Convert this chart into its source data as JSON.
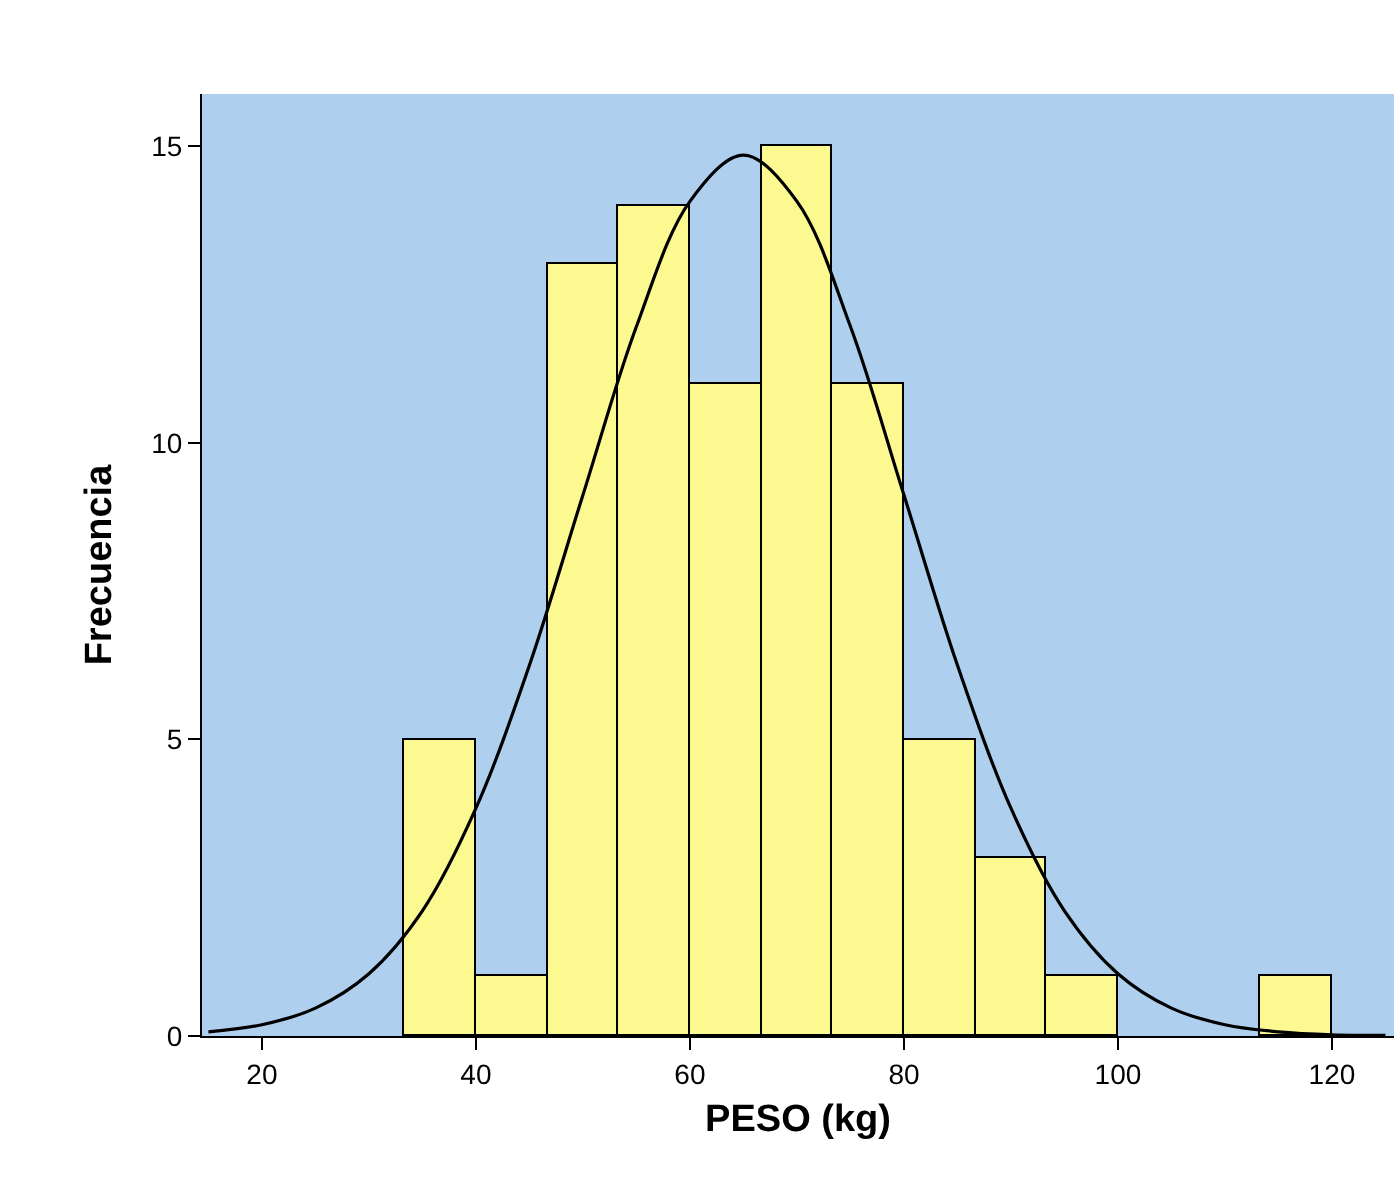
{
  "chart_data": {
    "type": "histogram",
    "xlabel": "PESO (kg)",
    "ylabel": "Frecuencia",
    "color": "#fbf98f",
    "bins": [
      33.33,
      40,
      46.67,
      53.33,
      60,
      66.67,
      73.33,
      80,
      86.67,
      93.33,
      100,
      106.67,
      113.33,
      120
    ],
    "values": [
      5,
      1,
      13,
      14,
      11,
      15,
      11,
      5,
      3,
      1,
      0,
      0,
      1
    ],
    "series": [
      {
        "type": "line",
        "color": "#000000",
        "x": [
          15,
          20,
          25,
          30,
          35,
          40,
          45,
          50,
          55,
          60,
          65,
          70,
          75,
          80,
          85,
          90,
          95,
          100,
          105,
          110,
          115,
          120,
          125
        ],
        "values": [
          0.07,
          0.19,
          0.47,
          1.05,
          2.11,
          3.84,
          6.25,
          9.12,
          11.96,
          14.07,
          14.85,
          14.07,
          11.96,
          9.12,
          6.25,
          3.84,
          2.11,
          1.05,
          0.47,
          0.19,
          0.07,
          0.02,
          0.01
        ]
      }
    ],
    "xlim": [
      14.4,
      125.8
    ],
    "ylim": [
      0,
      15.88
    ],
    "xticks": [
      20,
      40,
      60,
      80,
      100,
      120
    ],
    "yticks": [
      0,
      5,
      10,
      15
    ],
    "grid": false
  }
}
